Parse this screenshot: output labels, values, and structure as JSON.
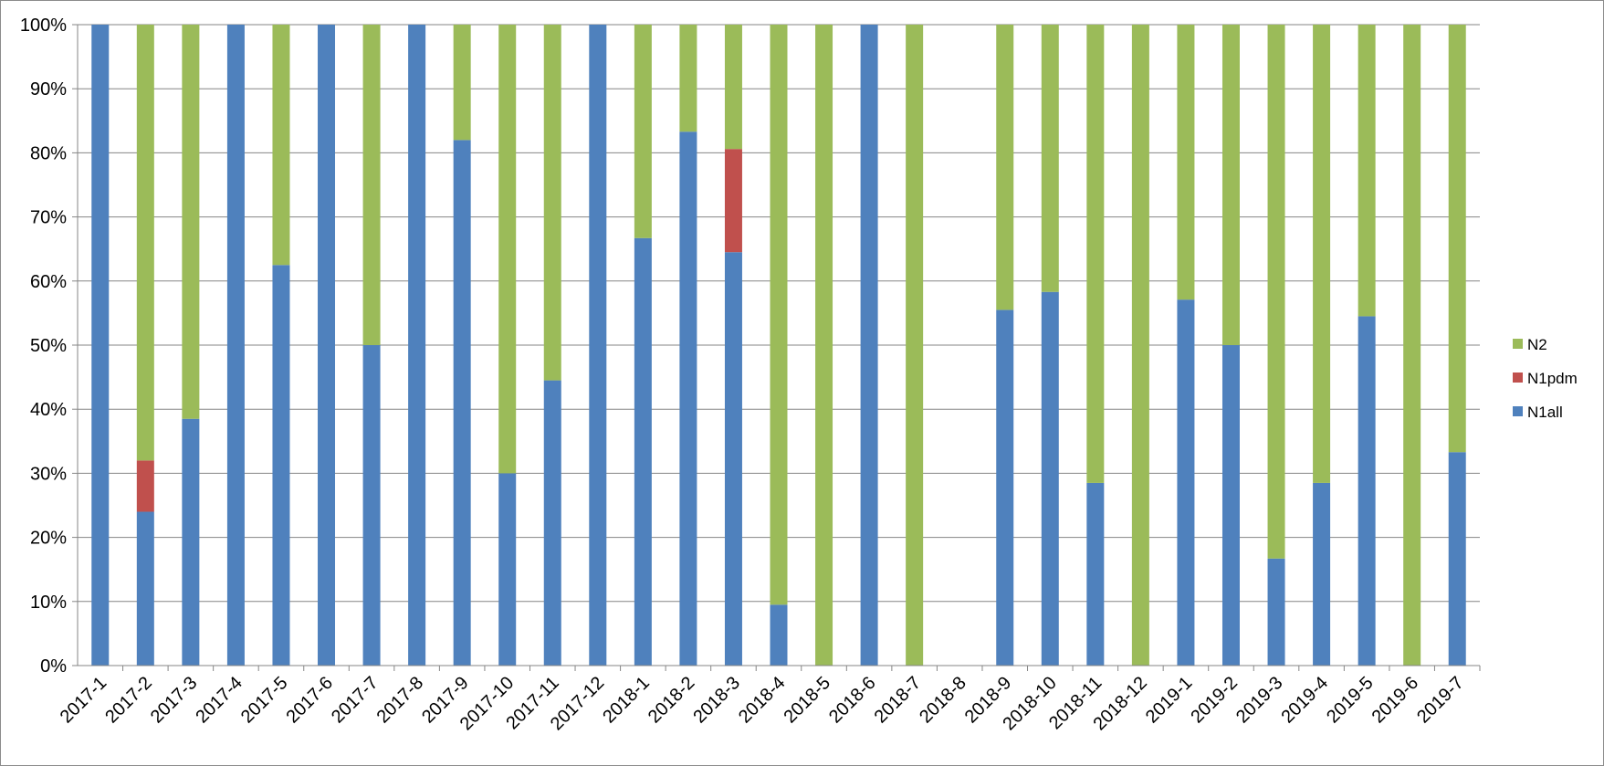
{
  "chart_data": {
    "type": "bar",
    "stacked": "percent",
    "categories": [
      "2017-1",
      "2017-2",
      "2017-3",
      "2017-4",
      "2017-5",
      "2017-6",
      "2017-7",
      "2017-8",
      "2017-9",
      "2017-10",
      "2017-11",
      "2017-12",
      "2018-1",
      "2018-2",
      "2018-3",
      "2018-4",
      "2018-5",
      "2018-6",
      "2018-7",
      "2018-8",
      "2018-9",
      "2018-10",
      "2018-11",
      "2018-12",
      "2019-1",
      "2019-2",
      "2019-3",
      "2019-4",
      "2019-5",
      "2019-6",
      "2019-7"
    ],
    "series": [
      {
        "name": "N1all",
        "color": "#4f81bd",
        "values": [
          100,
          24,
          38.5,
          100,
          62.5,
          100,
          50,
          100,
          82,
          30,
          44.5,
          100,
          66.7,
          83.3,
          64.5,
          9.5,
          0,
          100,
          0,
          0,
          55.5,
          58.3,
          28.5,
          0,
          57.1,
          50,
          16.7,
          28.5,
          54.5,
          0,
          33.3
        ]
      },
      {
        "name": "N1pdm",
        "color": "#c0504d",
        "values": [
          0,
          8,
          0,
          0,
          0,
          0,
          0,
          0,
          0,
          0,
          0,
          0,
          0,
          0,
          16.1,
          0,
          0,
          0,
          0,
          0,
          0,
          0,
          0,
          0,
          0,
          0,
          0,
          0,
          0,
          0,
          0
        ]
      },
      {
        "name": "N2",
        "color": "#9bbb59",
        "values": [
          0,
          68,
          61.5,
          0,
          37.5,
          0,
          50,
          0,
          18,
          70,
          55.5,
          0,
          33.3,
          16.7,
          19.4,
          90.5,
          100,
          0,
          100,
          0,
          44.5,
          41.7,
          71.5,
          100,
          42.9,
          50,
          83.3,
          71.5,
          45.5,
          100,
          66.7
        ]
      }
    ],
    "y_ticks": [
      "0%",
      "10%",
      "20%",
      "30%",
      "40%",
      "50%",
      "60%",
      "70%",
      "80%",
      "90%",
      "100%"
    ],
    "ylim": [
      0,
      100
    ],
    "title": "",
    "xlabel": "",
    "ylabel": "",
    "legend_position": "right",
    "grid": "horizontal",
    "gridline_color": "#868686"
  }
}
